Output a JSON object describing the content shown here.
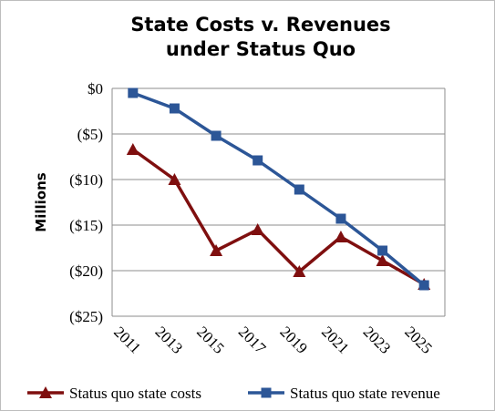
{
  "chart_data": {
    "type": "line",
    "title_lines": [
      "State Costs v. Revenues",
      "under Status Quo"
    ],
    "xlabel": "",
    "ylabel": "Millions",
    "x": [
      "2011",
      "2013",
      "2015",
      "2017",
      "2019",
      "2021",
      "2023",
      "2025"
    ],
    "ylim": [
      -25,
      0
    ],
    "ytick_values": [
      0,
      -5,
      -10,
      -15,
      -20,
      -25
    ],
    "ytick_labels": [
      "$0",
      "($5)",
      "($10)",
      "($15)",
      "($20)",
      "($25)"
    ],
    "grid": "horizontal",
    "legend_position": "bottom",
    "series": [
      {
        "name": "Status quo state costs",
        "color": "#7f0f0f",
        "marker": "triangle",
        "values": [
          -6.7,
          -10.0,
          -17.8,
          -15.5,
          -20.1,
          -16.3,
          -18.9,
          -21.5
        ]
      },
      {
        "name": "Status quo state revenue",
        "color": "#2c5697",
        "marker": "square",
        "values": [
          -0.5,
          -2.2,
          -5.2,
          -7.9,
          -11.1,
          -14.3,
          -17.8,
          -21.6
        ]
      }
    ]
  }
}
